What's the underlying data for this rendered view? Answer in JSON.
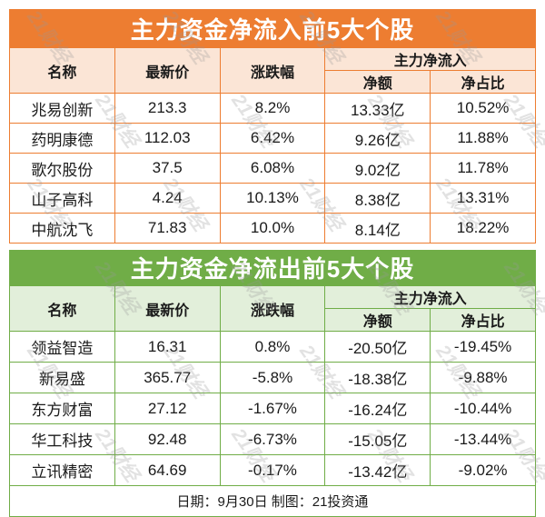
{
  "colors": {
    "inflow_banner": "#ED7D31",
    "inflow_header_bg": "#FBE5D6",
    "outflow_banner": "#70AD47",
    "outflow_header_bg": "#E2EFDA",
    "banner_text": "#FFFFFF",
    "body_text": "#1A1A1A",
    "watermark": "#999999",
    "background": "#FFFFFF"
  },
  "watermark": {
    "text": "21财经"
  },
  "inflow_table": {
    "title": "主力资金净流入前5大个股",
    "headers": {
      "name": "名称",
      "price": "最新价",
      "change": "涨跌幅",
      "group": "主力净流入",
      "net": "净额",
      "ratio": "净占比"
    },
    "rows": [
      {
        "name": "兆易创新",
        "price": "213.3",
        "change": "8.2%",
        "net": "13.33亿",
        "ratio": "10.52%"
      },
      {
        "name": "药明康德",
        "price": "112.03",
        "change": "6.42%",
        "net": "9.26亿",
        "ratio": "11.88%"
      },
      {
        "name": "歌尔股份",
        "price": "37.5",
        "change": "6.08%",
        "net": "9.02亿",
        "ratio": "11.78%"
      },
      {
        "name": "山子高科",
        "price": "4.24",
        "change": "10.13%",
        "net": "8.38亿",
        "ratio": "13.31%"
      },
      {
        "name": "中航沈飞",
        "price": "71.83",
        "change": "10.0%",
        "net": "8.14亿",
        "ratio": "18.22%"
      }
    ]
  },
  "outflow_table": {
    "title": "主力资金净流出前5大个股",
    "headers": {
      "name": "名称",
      "price": "最新价",
      "change": "涨跌幅",
      "group": "主力净流入",
      "net": "净额",
      "ratio": "净占比"
    },
    "rows": [
      {
        "name": "领益智造",
        "price": "16.31",
        "change": "0.8%",
        "net": "-20.50亿",
        "ratio": "-19.45%"
      },
      {
        "name": "新易盛",
        "price": "365.77",
        "change": "-5.8%",
        "net": "-18.38亿",
        "ratio": "-9.88%"
      },
      {
        "name": "东方财富",
        "price": "27.12",
        "change": "-1.67%",
        "net": "-16.24亿",
        "ratio": "-10.44%"
      },
      {
        "name": "华工科技",
        "price": "92.48",
        "change": "-6.73%",
        "net": "-15.05亿",
        "ratio": "-13.44%"
      },
      {
        "name": "立讯精密",
        "price": "64.69",
        "change": "-0.17%",
        "net": "-13.42亿",
        "ratio": "-9.02%"
      }
    ]
  },
  "footer": {
    "text": "日期：9月30日 制图：21投资通"
  },
  "chart_data": [
    {
      "type": "table",
      "title": "主力资金净流入前5大个股",
      "columns": [
        "名称",
        "最新价",
        "涨跌幅",
        "主力净流入-净额",
        "主力净流入-净占比"
      ],
      "rows": [
        [
          "兆易创新",
          213.3,
          "8.2%",
          "13.33亿",
          "10.52%"
        ],
        [
          "药明康德",
          112.03,
          "6.42%",
          "9.26亿",
          "11.88%"
        ],
        [
          "歌尔股份",
          37.5,
          "6.08%",
          "9.02亿",
          "11.78%"
        ],
        [
          "山子高科",
          4.24,
          "10.13%",
          "8.38亿",
          "13.31%"
        ],
        [
          "中航沈飞",
          71.83,
          "10.0%",
          "8.14亿",
          "18.22%"
        ]
      ]
    },
    {
      "type": "table",
      "title": "主力资金净流出前5大个股",
      "columns": [
        "名称",
        "最新价",
        "涨跌幅",
        "主力净流入-净额",
        "主力净流入-净占比"
      ],
      "rows": [
        [
          "领益智造",
          16.31,
          "0.8%",
          "-20.50亿",
          "-19.45%"
        ],
        [
          "新易盛",
          365.77,
          "-5.8%",
          "-18.38亿",
          "-9.88%"
        ],
        [
          "东方财富",
          27.12,
          "-1.67%",
          "-16.24亿",
          "-10.44%"
        ],
        [
          "华工科技",
          92.48,
          "-6.73%",
          "-15.05亿",
          "-13.44%"
        ],
        [
          "立讯精密",
          64.69,
          "-0.17%",
          "-13.42亿",
          "-9.02%"
        ]
      ]
    }
  ]
}
